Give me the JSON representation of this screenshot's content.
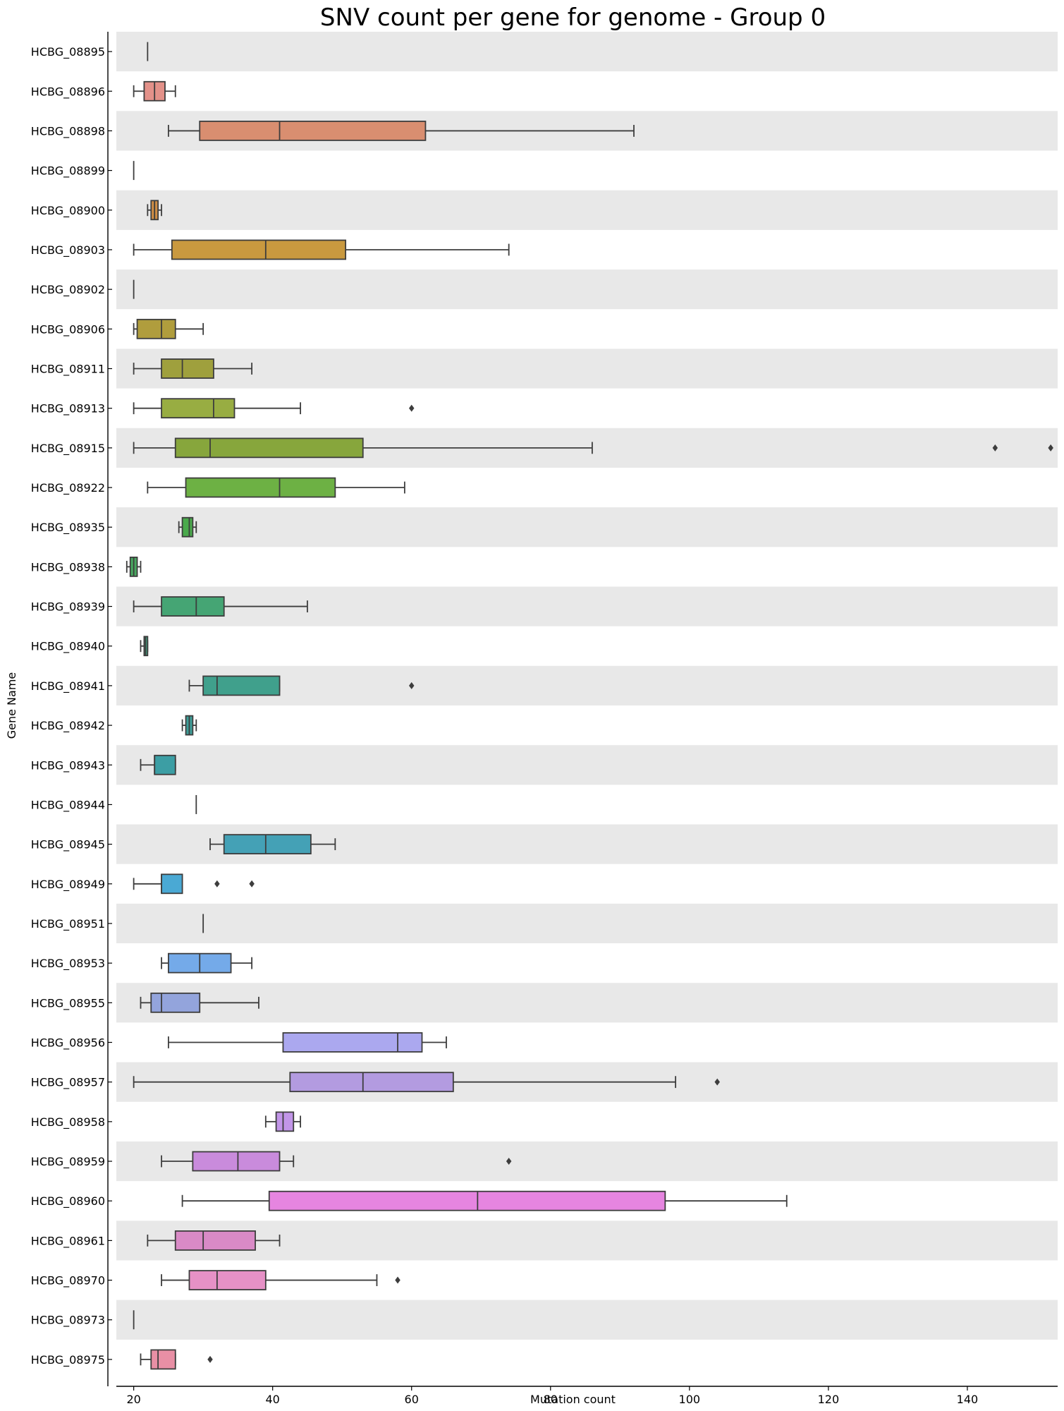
{
  "chart_data": {
    "type": "boxplot",
    "orientation": "horizontal",
    "title": "SNV count per gene for genome - Group 0",
    "xlabel": "Mutation count",
    "ylabel": "Gene Name",
    "xlim": [
      17.5,
      153
    ],
    "xticks": [
      20,
      40,
      60,
      80,
      100,
      120,
      140
    ],
    "alternating_row_shading": true,
    "shade_color": "#e8e8e8",
    "series": [
      {
        "gene": "HCBG_08895",
        "color": "#e89090",
        "min": 22,
        "q1": 22,
        "median": 22,
        "q3": 22,
        "max": 22,
        "outliers": []
      },
      {
        "gene": "HCBG_08896",
        "color": "#e39189",
        "min": 20,
        "q1": 21.5,
        "median": 23,
        "q3": 24.5,
        "max": 26,
        "outliers": []
      },
      {
        "gene": "HCBG_08898",
        "color": "#d98e70",
        "min": 25,
        "q1": 29.5,
        "median": 41,
        "q3": 62,
        "max": 92,
        "outliers": []
      },
      {
        "gene": "HCBG_08899",
        "color": "#d18d5c",
        "min": 20,
        "q1": 20,
        "median": 20,
        "q3": 20,
        "max": 20,
        "outliers": []
      },
      {
        "gene": "HCBG_08900",
        "color": "#cf8e46",
        "min": 22,
        "q1": 22.5,
        "median": 23,
        "q3": 23.5,
        "max": 24,
        "outliers": []
      },
      {
        "gene": "HCBG_08903",
        "color": "#c9993f",
        "min": 20,
        "q1": 25.5,
        "median": 39,
        "q3": 50.5,
        "max": 74,
        "outliers": []
      },
      {
        "gene": "HCBG_08902",
        "color": "#bf9d3d",
        "min": 20,
        "q1": 20,
        "median": 20,
        "q3": 20,
        "max": 20,
        "outliers": []
      },
      {
        "gene": "HCBG_08906",
        "color": "#b09d3d",
        "min": 20,
        "q1": 20.5,
        "median": 24,
        "q3": 26,
        "max": 30,
        "outliers": []
      },
      {
        "gene": "HCBG_08911",
        "color": "#9fa03d",
        "min": 20,
        "q1": 24,
        "median": 27,
        "q3": 31.5,
        "max": 37,
        "outliers": []
      },
      {
        "gene": "HCBG_08913",
        "color": "#98ad42",
        "min": 20,
        "q1": 24,
        "median": 31.5,
        "q3": 34.5,
        "max": 44,
        "outliers": [
          60
        ]
      },
      {
        "gene": "HCBG_08915",
        "color": "#87a63c",
        "min": 20,
        "q1": 26,
        "median": 31,
        "q3": 53,
        "max": 86,
        "outliers": [
          144,
          152
        ]
      },
      {
        "gene": "HCBG_08922",
        "color": "#6db144",
        "min": 22,
        "q1": 27.5,
        "median": 41,
        "q3": 49,
        "max": 59,
        "outliers": []
      },
      {
        "gene": "HCBG_08935",
        "color": "#4aaa4c",
        "min": 26.5,
        "q1": 27,
        "median": 28,
        "q3": 28.5,
        "max": 29,
        "outliers": []
      },
      {
        "gene": "HCBG_08938",
        "color": "#48a860",
        "min": 19,
        "q1": 19.5,
        "median": 20,
        "q3": 20.5,
        "max": 21,
        "outliers": []
      },
      {
        "gene": "HCBG_08939",
        "color": "#45a574",
        "min": 20,
        "q1": 24,
        "median": 29,
        "q3": 33,
        "max": 45,
        "outliers": []
      },
      {
        "gene": "HCBG_08940",
        "color": "#43a281",
        "min": 21,
        "q1": 21.5,
        "median": 21.7,
        "q3": 22,
        "max": 22,
        "outliers": []
      },
      {
        "gene": "HCBG_08941",
        "color": "#40a08c",
        "min": 28,
        "q1": 30,
        "median": 32,
        "q3": 41,
        "max": 41,
        "outliers": [
          60
        ]
      },
      {
        "gene": "HCBG_08942",
        "color": "#3e9e98",
        "min": 27,
        "q1": 27.5,
        "median": 28,
        "q3": 28.5,
        "max": 29,
        "outliers": []
      },
      {
        "gene": "HCBG_08943",
        "color": "#3c9ea4",
        "min": 21,
        "q1": 23,
        "median": 23,
        "q3": 26,
        "max": 26,
        "outliers": []
      },
      {
        "gene": "HCBG_08944",
        "color": "#3da1ae",
        "min": 29,
        "q1": 29,
        "median": 29,
        "q3": 29,
        "max": 29,
        "outliers": []
      },
      {
        "gene": "HCBG_08945",
        "color": "#44a1b6",
        "min": 31,
        "q1": 33,
        "median": 39,
        "q3": 45.5,
        "max": 49,
        "outliers": []
      },
      {
        "gene": "HCBG_08949",
        "color": "#4aa9d4",
        "min": 20,
        "q1": 24,
        "median": 24,
        "q3": 27,
        "max": 27,
        "outliers": [
          32,
          37
        ]
      },
      {
        "gene": "HCBG_08951",
        "color": "#59a8e0",
        "min": 30,
        "q1": 30,
        "median": 30,
        "q3": 30,
        "max": 30,
        "outliers": []
      },
      {
        "gene": "HCBG_08953",
        "color": "#74aae9",
        "min": 24,
        "q1": 25,
        "median": 29.5,
        "q3": 34,
        "max": 37,
        "outliers": []
      },
      {
        "gene": "HCBG_08955",
        "color": "#93a4dc",
        "min": 21,
        "q1": 22.5,
        "median": 24,
        "q3": 29.5,
        "max": 38,
        "outliers": []
      },
      {
        "gene": "HCBG_08956",
        "color": "#aba8ef",
        "min": 25,
        "q1": 41.5,
        "median": 58,
        "q3": 61.5,
        "max": 65,
        "outliers": []
      },
      {
        "gene": "HCBG_08957",
        "color": "#b39be0",
        "min": 20,
        "q1": 42.5,
        "median": 53,
        "q3": 66,
        "max": 98,
        "outliers": [
          104
        ]
      },
      {
        "gene": "HCBG_08958",
        "color": "#c295e8",
        "min": 39,
        "q1": 40.5,
        "median": 41.5,
        "q3": 43,
        "max": 44,
        "outliers": []
      },
      {
        "gene": "HCBG_08959",
        "color": "#c98bdc",
        "min": 24,
        "q1": 28.5,
        "median": 35,
        "q3": 41,
        "max": 43,
        "outliers": [
          74
        ]
      },
      {
        "gene": "HCBG_08960",
        "color": "#e685e0",
        "min": 27,
        "q1": 39.5,
        "median": 69.5,
        "q3": 96.5,
        "max": 114,
        "outliers": []
      },
      {
        "gene": "HCBG_08961",
        "color": "#d98ac6",
        "min": 22,
        "q1": 26,
        "median": 30,
        "q3": 37.5,
        "max": 41,
        "outliers": []
      },
      {
        "gene": "HCBG_08970",
        "color": "#e691c6",
        "min": 24,
        "q1": 28,
        "median": 32,
        "q3": 39,
        "max": 55,
        "outliers": [
          58
        ]
      },
      {
        "gene": "HCBG_08973",
        "color": "#e891b4",
        "min": 20,
        "q1": 20,
        "median": 20,
        "q3": 20,
        "max": 20,
        "outliers": []
      },
      {
        "gene": "HCBG_08975",
        "color": "#e88fa5",
        "min": 21,
        "q1": 22.5,
        "median": 23.5,
        "q3": 26,
        "max": 26,
        "outliers": [
          31
        ]
      }
    ]
  }
}
